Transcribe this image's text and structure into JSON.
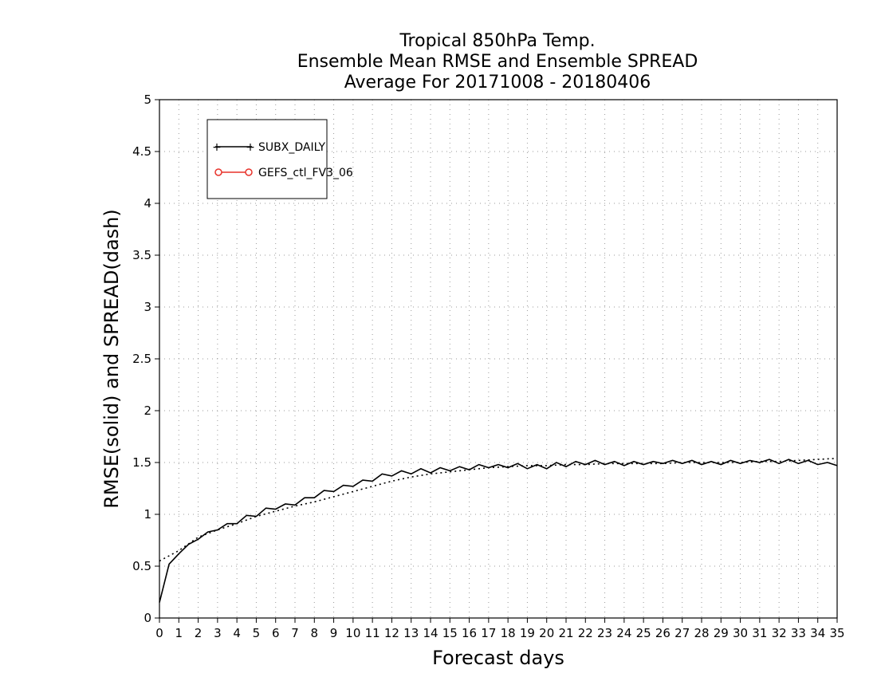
{
  "chart_data": {
    "type": "line",
    "title": [
      "Tropical 850hPa Temp.",
      "Ensemble Mean RMSE and Ensemble SPREAD",
      "Average For 20171008 - 20180406"
    ],
    "xlabel": "Forecast days",
    "ylabel": "RMSE(solid) and SPREAD(dash)",
    "xlim": [
      0,
      35
    ],
    "ylim": [
      0,
      5
    ],
    "x_ticks": [
      0,
      1,
      2,
      3,
      4,
      5,
      6,
      7,
      8,
      9,
      10,
      11,
      12,
      13,
      14,
      15,
      16,
      17,
      18,
      19,
      20,
      21,
      22,
      23,
      24,
      25,
      26,
      27,
      28,
      29,
      30,
      31,
      32,
      33,
      34,
      35
    ],
    "y_ticks": [
      0,
      0.5,
      1,
      1.5,
      2,
      2.5,
      3,
      3.5,
      4,
      4.5,
      5
    ],
    "y_tick_labels": [
      "0",
      "0.5",
      "1",
      "1.5",
      "2",
      "2.5",
      "3",
      "3.5",
      "4",
      "4.5",
      "5"
    ],
    "grid": true,
    "legend_position": "top-left",
    "legend": [
      {
        "name": "SUBX_DAILY",
        "color": "#000000",
        "marker": "plus"
      },
      {
        "name": "GEFS_ctl_FV3_06",
        "color": "#e8322a",
        "marker": "circle"
      }
    ],
    "series": [
      {
        "name": "SUBX_DAILY RMSE",
        "style": "solid",
        "color": "#000000",
        "x": [
          0,
          0.5,
          1,
          1.5,
          2,
          2.5,
          3,
          3.5,
          4,
          4.5,
          5,
          5.5,
          6,
          6.5,
          7,
          7.5,
          8,
          8.5,
          9,
          9.5,
          10,
          10.5,
          11,
          11.5,
          12,
          12.5,
          13,
          13.5,
          14,
          14.5,
          15,
          15.5,
          16,
          16.5,
          17,
          17.5,
          18,
          18.5,
          19,
          19.5,
          20,
          20.5,
          21,
          21.5,
          22,
          22.5,
          23,
          23.5,
          24,
          24.5,
          25,
          25.5,
          26,
          26.5,
          27,
          27.5,
          28,
          28.5,
          29,
          29.5,
          30,
          30.5,
          31,
          31.5,
          32,
          32.5,
          33,
          33.5,
          34,
          34.5,
          35
        ],
        "y": [
          0.15,
          0.52,
          0.62,
          0.71,
          0.76,
          0.83,
          0.85,
          0.91,
          0.91,
          0.99,
          0.98,
          1.06,
          1.05,
          1.1,
          1.09,
          1.16,
          1.16,
          1.23,
          1.22,
          1.28,
          1.27,
          1.33,
          1.32,
          1.39,
          1.37,
          1.42,
          1.39,
          1.44,
          1.4,
          1.45,
          1.42,
          1.46,
          1.43,
          1.48,
          1.45,
          1.48,
          1.45,
          1.49,
          1.44,
          1.48,
          1.44,
          1.5,
          1.46,
          1.51,
          1.48,
          1.52,
          1.48,
          1.51,
          1.47,
          1.51,
          1.48,
          1.51,
          1.49,
          1.52,
          1.49,
          1.52,
          1.48,
          1.51,
          1.48,
          1.52,
          1.49,
          1.52,
          1.5,
          1.53,
          1.49,
          1.53,
          1.49,
          1.52,
          1.48,
          1.5,
          1.47
        ]
      },
      {
        "name": "SUBX_DAILY SPREAD",
        "style": "dotted",
        "color": "#000000",
        "x": [
          0,
          1,
          2,
          3,
          4,
          5,
          6,
          7,
          8,
          9,
          10,
          11,
          12,
          13,
          14,
          15,
          16,
          17,
          18,
          19,
          20,
          21,
          22,
          23,
          24,
          25,
          26,
          27,
          28,
          29,
          30,
          31,
          32,
          33,
          34,
          35
        ],
        "y": [
          0.55,
          0.65,
          0.78,
          0.85,
          0.91,
          0.98,
          1.03,
          1.08,
          1.12,
          1.17,
          1.22,
          1.27,
          1.32,
          1.36,
          1.39,
          1.41,
          1.43,
          1.45,
          1.46,
          1.47,
          1.47,
          1.48,
          1.48,
          1.49,
          1.49,
          1.49,
          1.49,
          1.5,
          1.5,
          1.5,
          1.5,
          1.51,
          1.51,
          1.52,
          1.53,
          1.54
        ]
      }
    ]
  }
}
